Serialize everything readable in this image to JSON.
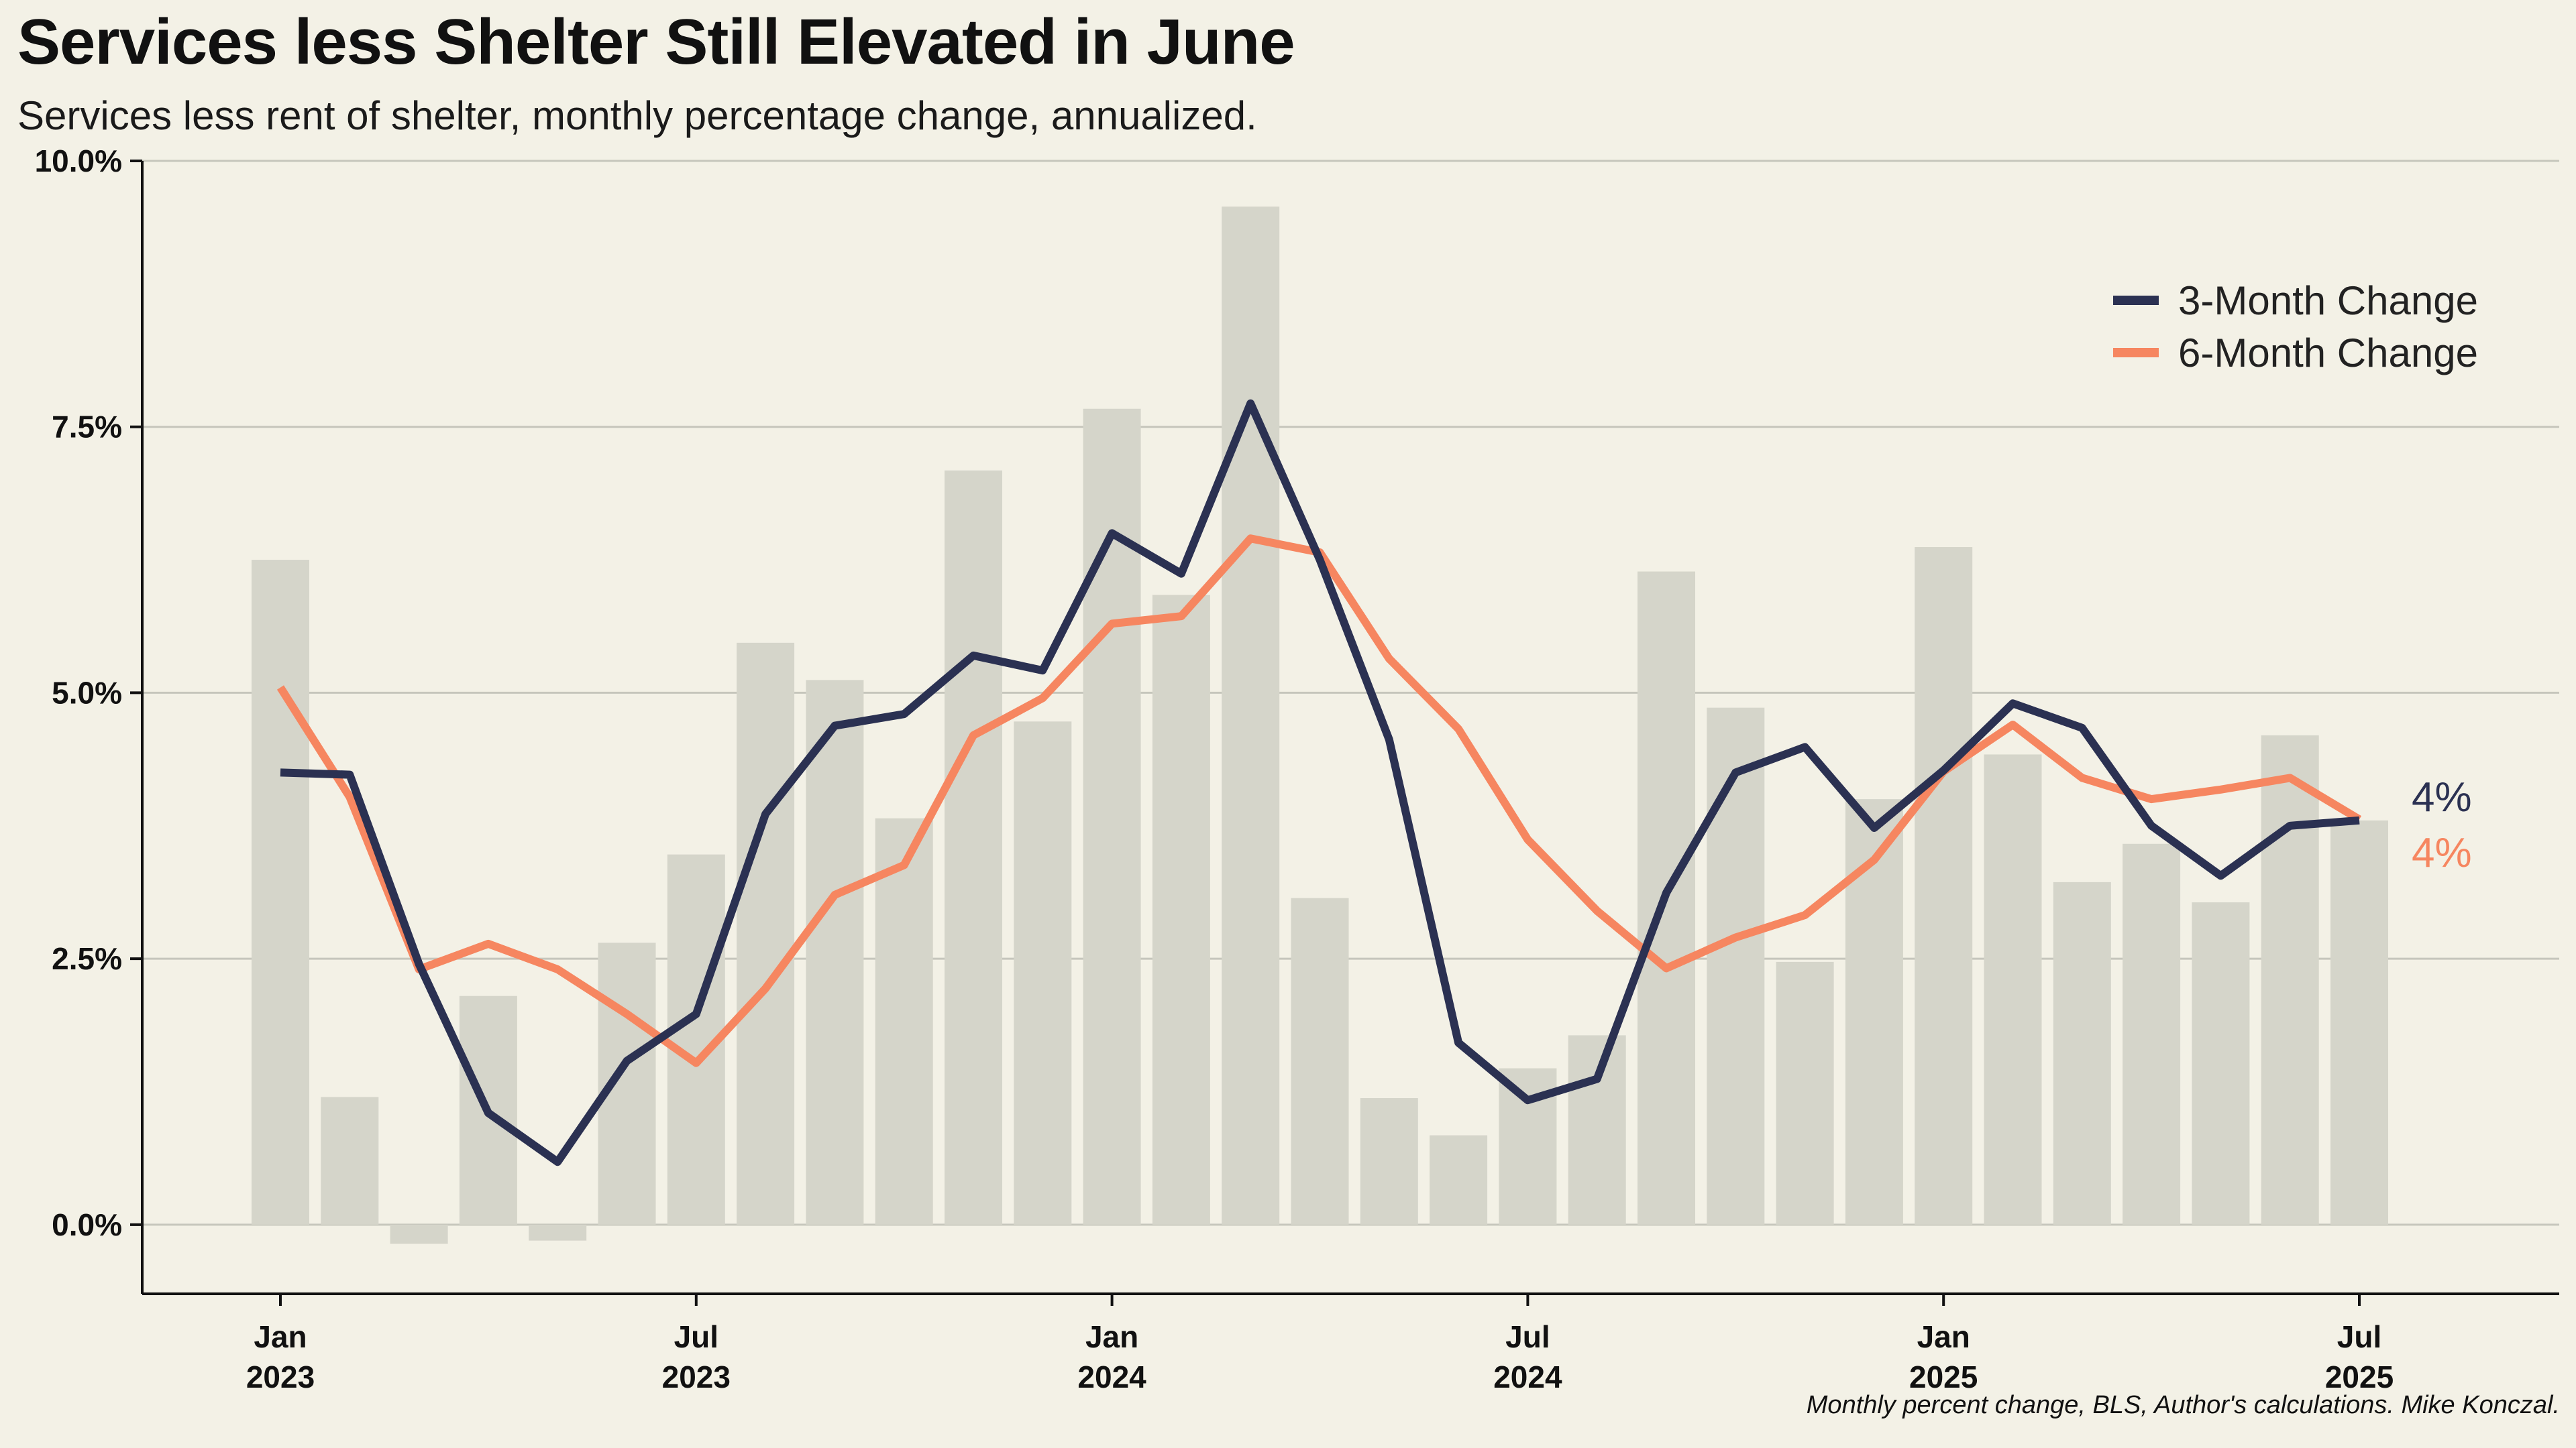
{
  "title": "Services less Shelter Still Elevated in June",
  "subtitle": "Services less rent of shelter, monthly percentage change, annualized.",
  "source": "Monthly percent change, BLS, Author's calculations. Mike Konczal.",
  "colors": {
    "background": "#f3f1e6",
    "bars": "#d5d5ca",
    "three_month": "#2b3152",
    "six_month": "#f68660",
    "grid": "#c6c6bc",
    "axis": "#111111"
  },
  "chart_data": {
    "type": "bar+line",
    "x": [
      "2023-01",
      "2023-02",
      "2023-03",
      "2023-04",
      "2023-05",
      "2023-06",
      "2023-07",
      "2023-08",
      "2023-09",
      "2023-10",
      "2023-11",
      "2023-12",
      "2024-01",
      "2024-02",
      "2024-03",
      "2024-04",
      "2024-05",
      "2024-06",
      "2024-07",
      "2024-08",
      "2024-09",
      "2024-10",
      "2024-11",
      "2024-12",
      "2025-01",
      "2025-02",
      "2025-03",
      "2025-04",
      "2025-05",
      "2025-06",
      "2025-07"
    ],
    "bars": {
      "values": [
        6.25,
        1.2,
        -0.18,
        2.15,
        -0.15,
        2.65,
        3.48,
        5.47,
        5.12,
        3.82,
        7.09,
        4.73,
        7.67,
        5.92,
        9.57,
        3.07,
        1.19,
        0.84,
        1.47,
        1.78,
        6.14,
        4.86,
        2.47,
        4.0,
        6.37,
        4.42,
        3.22,
        3.58,
        3.03,
        4.6,
        3.8
      ]
    },
    "series": [
      {
        "name": "3-Month Change",
        "values": [
          4.25,
          4.23,
          2.45,
          1.05,
          0.59,
          1.54,
          1.98,
          3.86,
          4.69,
          4.8,
          5.35,
          5.21,
          6.5,
          6.12,
          7.72,
          6.25,
          4.56,
          1.71,
          1.17,
          1.37,
          3.12,
          4.25,
          4.49,
          3.73,
          4.27,
          4.9,
          4.67,
          3.75,
          3.28,
          3.75,
          3.8
        ]
      },
      {
        "name": "6-Month Change",
        "values": [
          5.05,
          4.02,
          2.4,
          2.64,
          2.4,
          1.98,
          1.52,
          2.22,
          3.1,
          3.38,
          4.6,
          4.95,
          5.65,
          5.72,
          6.45,
          6.32,
          5.32,
          4.66,
          3.62,
          2.95,
          2.41,
          2.7,
          2.91,
          3.43,
          4.26,
          4.7,
          4.2,
          4.0,
          4.09,
          4.2,
          3.81
        ]
      }
    ],
    "end_labels": [
      "4%",
      "4%"
    ],
    "ylim": [
      -0.65,
      10.0
    ],
    "yticks": [
      0.0,
      2.5,
      5.0,
      7.5,
      10.0
    ],
    "ytick_labels": [
      "0.0%",
      "2.5%",
      "5.0%",
      "7.5%",
      "10.0%"
    ],
    "xtick_indices": [
      0,
      6,
      12,
      18,
      24,
      30
    ],
    "xtick_labels": [
      [
        "Jan",
        "2023"
      ],
      [
        "Jul",
        "2023"
      ],
      [
        "Jan",
        "2024"
      ],
      [
        "Jul",
        "2024"
      ],
      [
        "Jan",
        "2025"
      ],
      [
        "Jul",
        "2025"
      ]
    ],
    "grid": true,
    "legend_position": "top-right"
  }
}
